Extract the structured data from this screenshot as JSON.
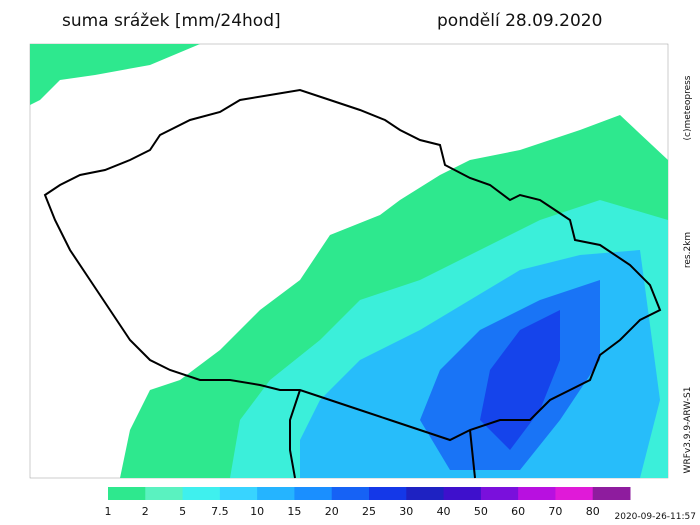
{
  "header": {
    "title": "suma srážek [mm/24hod]",
    "date": "pondělí 28.09.2020"
  },
  "side_labels": {
    "copyright": "(c)meteopress",
    "resolution": "res.2km",
    "model": "WRFv3.9.9-ARW-S1"
  },
  "timestamp": "2020-09-26-11:57",
  "colorbar": {
    "levels": [
      1,
      2,
      5,
      7.5,
      10,
      15,
      20,
      25,
      30,
      40,
      50,
      60,
      70,
      80
    ],
    "colors": [
      "#2ee88e",
      "#5af2c0",
      "#3ff0ee",
      "#38d4ff",
      "#25b4ff",
      "#1a8fff",
      "#1662f5",
      "#1438e8",
      "#1e22c2",
      "#3e10cc",
      "#7a10dc",
      "#b810e0",
      "#e01ad8",
      "#8e1c9e"
    ]
  }
}
